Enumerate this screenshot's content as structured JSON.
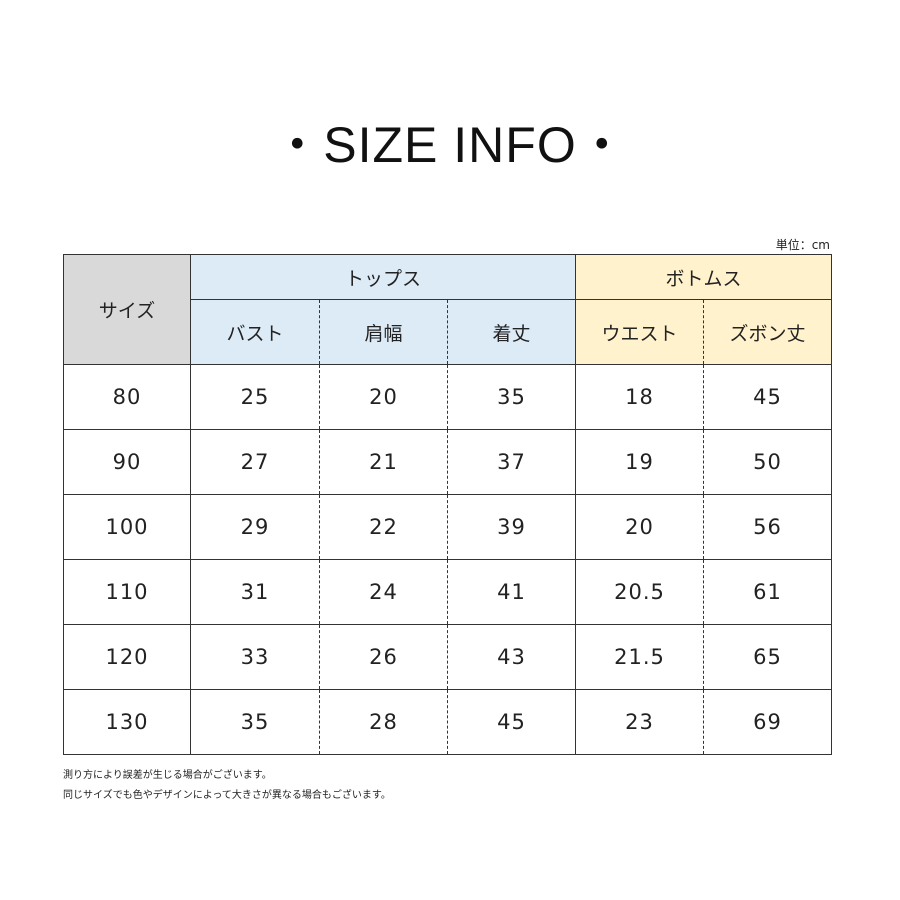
{
  "title": "・SIZE INFO・",
  "unit": "単位：cm",
  "colors": {
    "size_header": "#d9d9d9",
    "tops": "#ddebf7",
    "bottoms": "#fff2cc"
  },
  "header": {
    "size": "サイズ",
    "tops": "トップス",
    "bottoms": "ボトムス",
    "columns": [
      "バスト",
      "肩幅",
      "着丈",
      "ウエスト",
      "ズボン丈"
    ]
  },
  "rows": [
    [
      "80",
      "25",
      "20",
      "35",
      "18",
      "45"
    ],
    [
      "90",
      "27",
      "21",
      "37",
      "19",
      "50"
    ],
    [
      "100",
      "29",
      "22",
      "39",
      "20",
      "56"
    ],
    [
      "110",
      "31",
      "24",
      "41",
      "20.5",
      "61"
    ],
    [
      "120",
      "33",
      "26",
      "43",
      "21.5",
      "65"
    ],
    [
      "130",
      "35",
      "28",
      "45",
      "23",
      "69"
    ]
  ],
  "notes": [
    "測り方により誤差が生じる場合がございます。",
    "同じサイズでも色やデザインによって大きさが異なる場合もございます。"
  ]
}
